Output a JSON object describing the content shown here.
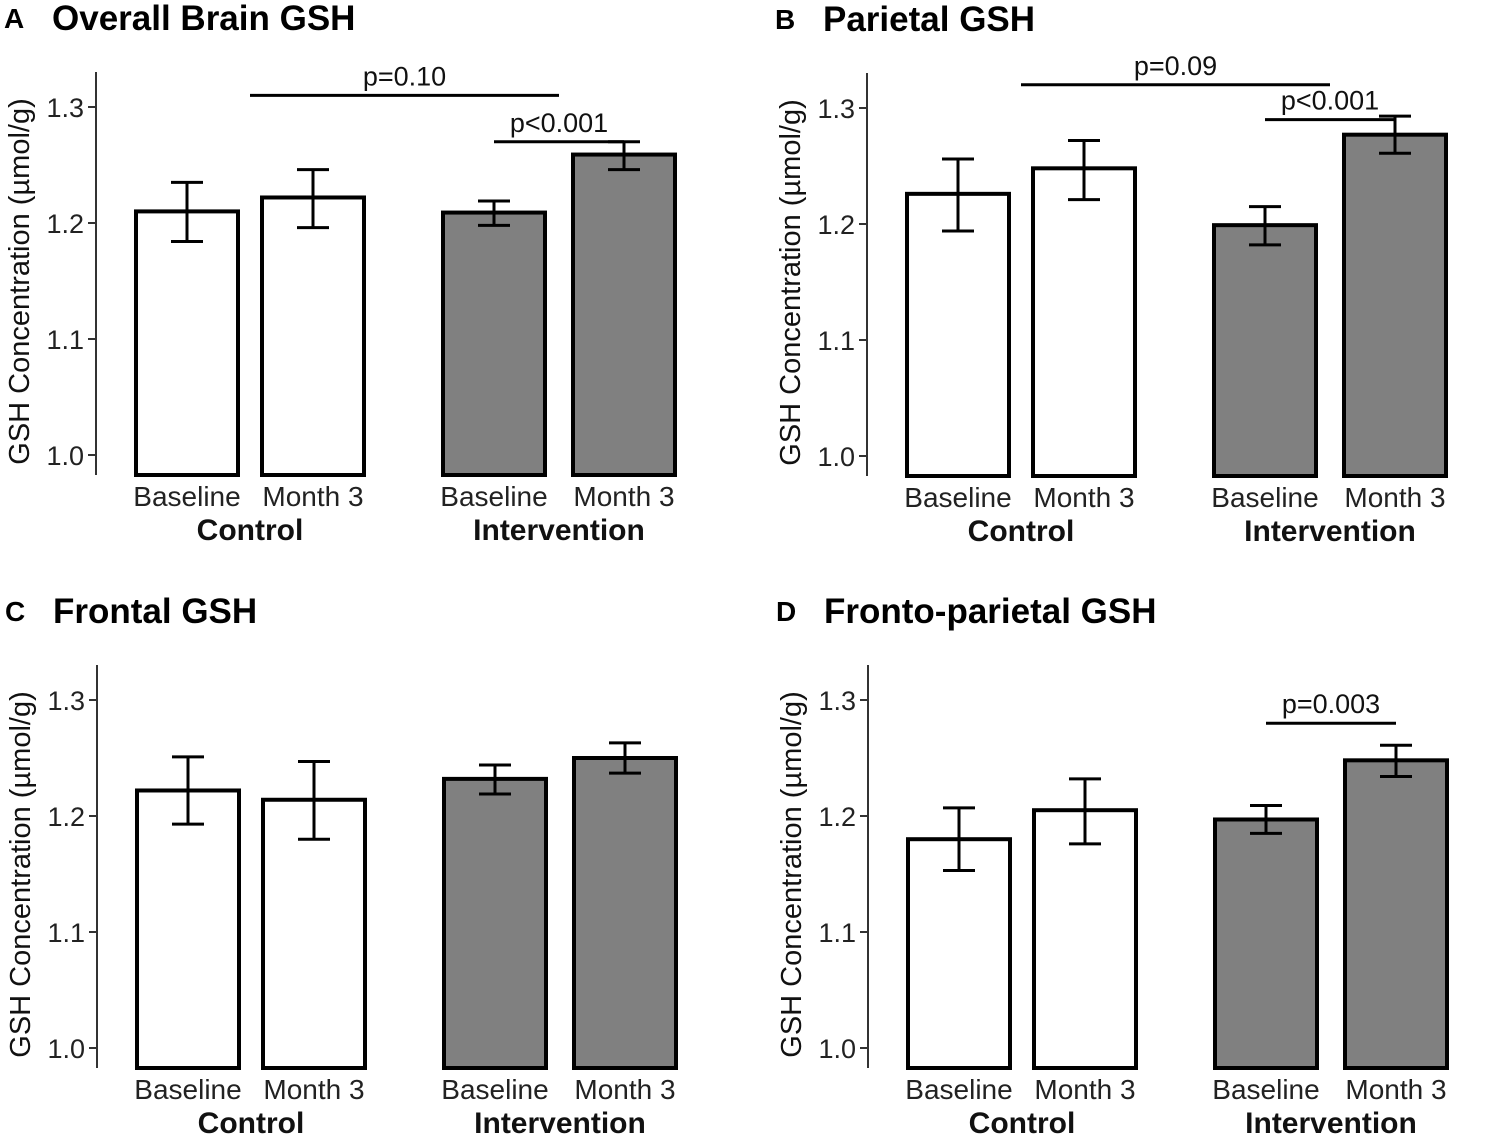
{
  "chart_data": [
    {
      "type": "bar",
      "letter": "A",
      "title": "Overall Brain GSH",
      "ylabel": "GSH Concentration (µmol/g)",
      "ylim": [
        0.99,
        1.33
      ],
      "yticks": [
        "1.0",
        "1.1",
        "1.2",
        "1.3"
      ],
      "groups": [
        "Control",
        "Intervention"
      ],
      "categories": [
        "Baseline",
        "Month 3",
        "Baseline",
        "Month 3"
      ],
      "values": [
        1.21,
        1.222,
        1.209,
        1.259
      ],
      "err_low": [
        1.184,
        1.196,
        1.198,
        1.246
      ],
      "err_high": [
        1.235,
        1.246,
        1.219,
        1.27
      ],
      "fills": [
        "#ffffff",
        "#ffffff",
        "#808080",
        "#808080"
      ],
      "significance": [
        {
          "text": "p=0.10",
          "from": 0.5,
          "to": 2.5,
          "y": 1.31
        },
        {
          "text": "p<0.001",
          "from": 2,
          "to": 3,
          "y": 1.27
        }
      ]
    },
    {
      "type": "bar",
      "letter": "B",
      "title": "Parietal GSH",
      "ylabel": "GSH Concentration (µmol/g)",
      "ylim": [
        0.99,
        1.33
      ],
      "yticks": [
        "1.0",
        "1.1",
        "1.2",
        "1.3"
      ],
      "groups": [
        "Control",
        "Intervention"
      ],
      "categories": [
        "Baseline",
        "Month 3",
        "Baseline",
        "Month 3"
      ],
      "values": [
        1.226,
        1.248,
        1.199,
        1.277
      ],
      "err_low": [
        1.194,
        1.221,
        1.182,
        1.261
      ],
      "err_high": [
        1.256,
        1.272,
        1.215,
        1.293
      ],
      "fills": [
        "#ffffff",
        "#ffffff",
        "#808080",
        "#808080"
      ],
      "significance": [
        {
          "text": "p=0.09",
          "from": 0.5,
          "to": 2.5,
          "y": 1.32
        },
        {
          "text": "p<0.001",
          "from": 2,
          "to": 3,
          "y": 1.29
        }
      ]
    },
    {
      "type": "bar",
      "letter": "C",
      "title": "Frontal GSH",
      "ylabel": "GSH Concentration (µmol/g)",
      "ylim": [
        0.99,
        1.33
      ],
      "yticks": [
        "1.0",
        "1.1",
        "1.2",
        "1.3"
      ],
      "groups": [
        "Control",
        "Intervention"
      ],
      "categories": [
        "Baseline",
        "Month 3",
        "Baseline",
        "Month 3"
      ],
      "values": [
        1.222,
        1.214,
        1.232,
        1.25
      ],
      "err_low": [
        1.193,
        1.18,
        1.219,
        1.237
      ],
      "err_high": [
        1.251,
        1.247,
        1.244,
        1.263
      ],
      "fills": [
        "#ffffff",
        "#ffffff",
        "#808080",
        "#808080"
      ],
      "significance": []
    },
    {
      "type": "bar",
      "letter": "D",
      "title": "Fronto-parietal GSH",
      "ylabel": "GSH Concentration (µmol/g)",
      "ylim": [
        0.99,
        1.33
      ],
      "yticks": [
        "1.0",
        "1.1",
        "1.2",
        "1.3"
      ],
      "groups": [
        "Control",
        "Intervention"
      ],
      "categories": [
        "Baseline",
        "Month 3",
        "Baseline",
        "Month 3"
      ],
      "values": [
        1.18,
        1.205,
        1.197,
        1.248
      ],
      "err_low": [
        1.153,
        1.176,
        1.185,
        1.234
      ],
      "err_high": [
        1.207,
        1.232,
        1.209,
        1.261
      ],
      "fills": [
        "#ffffff",
        "#ffffff",
        "#808080",
        "#808080"
      ],
      "significance": [
        {
          "text": "p=0.003",
          "from": 2,
          "to": 3,
          "y": 1.28
        }
      ]
    }
  ]
}
